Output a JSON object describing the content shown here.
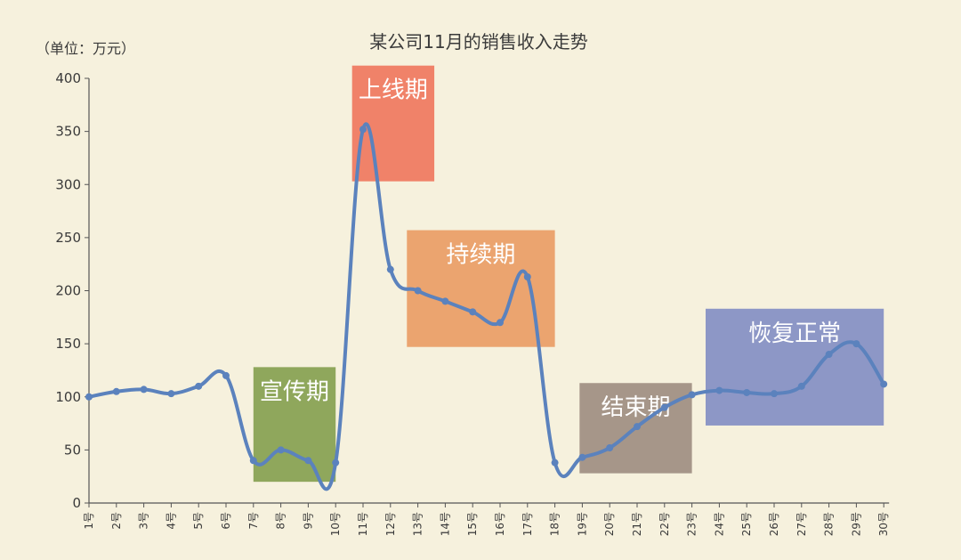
{
  "chart_data": {
    "type": "line",
    "title": "某公司11月的销售收入走势",
    "unit_label": "（单位：万元）",
    "xlabel": "",
    "ylabel": "",
    "ylim": [
      0,
      400
    ],
    "yticks": [
      0,
      50,
      100,
      150,
      200,
      250,
      300,
      350,
      400
    ],
    "categories": [
      "1号",
      "2号",
      "3号",
      "4号",
      "5号",
      "6号",
      "7号",
      "8号",
      "9号",
      "10号",
      "11号",
      "12号",
      "13号",
      "14号",
      "15号",
      "16号",
      "17号",
      "18号",
      "19号",
      "20号",
      "21号",
      "22号",
      "23号",
      "24号",
      "25号",
      "26号",
      "27号",
      "28号",
      "29号",
      "30号"
    ],
    "series": [
      {
        "values": [
          100,
          105,
          107,
          103,
          110,
          120,
          40,
          50,
          40,
          38,
          352,
          220,
          200,
          190,
          180,
          170,
          213,
          38,
          43,
          52,
          72,
          90,
          102,
          106,
          104,
          103,
          110,
          140,
          150,
          112
        ],
        "color": "#5b82bd"
      }
    ],
    "phases": [
      {
        "label": "宣传期",
        "start": 6,
        "end": 9,
        "ymin": 20,
        "ymax": 128,
        "color": "#7c9a45"
      },
      {
        "label": "上线期",
        "start": 9.6,
        "end": 12.6,
        "ymin": 303,
        "ymax": 412,
        "color": "#ee6e55"
      },
      {
        "label": "持续期",
        "start": 11.6,
        "end": 17,
        "ymin": 147,
        "ymax": 257,
        "color": "#e9965c"
      },
      {
        "label": "结束期",
        "start": 17.9,
        "end": 22,
        "ymin": 28,
        "ymax": 113,
        "color": "#98867a"
      },
      {
        "label": "恢复正常",
        "start": 22.5,
        "end": 29,
        "ymin": 73,
        "ymax": 183,
        "color": "#7a87c2"
      }
    ]
  }
}
